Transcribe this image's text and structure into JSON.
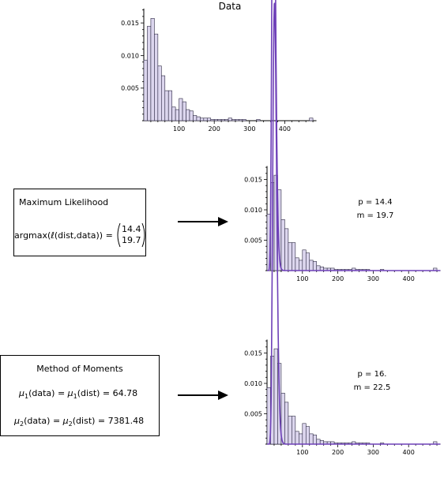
{
  "title": "Data",
  "colors": {
    "bar_fill": "#dcd6ee",
    "bar_stroke": "#2a2640",
    "curve": "#6e40b8",
    "axis": "#000000"
  },
  "chart_data": [
    {
      "type": "bar",
      "title": "Data",
      "bin_width": 10,
      "x_start": 0,
      "values": [
        0.0093,
        0.0145,
        0.0157,
        0.0133,
        0.0084,
        0.0069,
        0.0046,
        0.0046,
        0.0021,
        0.0017,
        0.0034,
        0.0029,
        0.0017,
        0.0015,
        0.0008,
        0.0006,
        0.0004,
        0.0004,
        0.0004,
        0.0002,
        0.0002,
        0.0002,
        0.0002,
        0.0002,
        0.0004,
        0.0002,
        0.0002,
        0.0002,
        0.0002,
        0.0,
        0.0,
        0.0,
        0.0002,
        0.0,
        0.0,
        0.0,
        0.0,
        0.0,
        0.0,
        0.0,
        0.0,
        0.0,
        0.0,
        0.0,
        0.0,
        0.0,
        0.0,
        0.0004
      ],
      "xlim": [
        0,
        490
      ],
      "ylim": [
        0,
        0.0172
      ],
      "xticks": [
        100,
        200,
        300,
        400
      ],
      "yticks": [
        0.005,
        0.01,
        0.015
      ],
      "ytick_labels": [
        "0.005",
        "0.010",
        "0.015"
      ]
    },
    {
      "type": "bar",
      "title": "",
      "bin_width": 10,
      "x_start": 0,
      "values": [
        0.0093,
        0.0145,
        0.0157,
        0.0133,
        0.0084,
        0.0069,
        0.0046,
        0.0046,
        0.0021,
        0.0017,
        0.0034,
        0.0029,
        0.0017,
        0.0015,
        0.0008,
        0.0006,
        0.0004,
        0.0004,
        0.0004,
        0.0002,
        0.0002,
        0.0002,
        0.0002,
        0.0002,
        0.0004,
        0.0002,
        0.0002,
        0.0002,
        0.0002,
        0.0,
        0.0,
        0.0,
        0.0002,
        0.0,
        0.0,
        0.0,
        0.0,
        0.0,
        0.0,
        0.0,
        0.0,
        0.0,
        0.0,
        0.0,
        0.0,
        0.0,
        0.0,
        0.0004
      ],
      "xlim": [
        0,
        490
      ],
      "ylim": [
        0,
        0.0172
      ],
      "xticks": [
        100,
        200,
        300,
        400
      ],
      "yticks": [
        0.005,
        0.01,
        0.015
      ],
      "ytick_labels": [
        "0.005",
        "0.010",
        "0.015"
      ],
      "curve": {
        "p": 14.4,
        "m": 19.7
      }
    },
    {
      "type": "bar",
      "title": "",
      "bin_width": 10,
      "x_start": 0,
      "values": [
        0.0093,
        0.0145,
        0.0157,
        0.0133,
        0.0084,
        0.0069,
        0.0046,
        0.0046,
        0.0021,
        0.0017,
        0.0034,
        0.0029,
        0.0017,
        0.0015,
        0.0008,
        0.0006,
        0.0004,
        0.0004,
        0.0004,
        0.0002,
        0.0002,
        0.0002,
        0.0002,
        0.0002,
        0.0004,
        0.0002,
        0.0002,
        0.0002,
        0.0002,
        0.0,
        0.0,
        0.0,
        0.0002,
        0.0,
        0.0,
        0.0,
        0.0,
        0.0,
        0.0,
        0.0,
        0.0,
        0.0,
        0.0,
        0.0,
        0.0,
        0.0,
        0.0,
        0.0004
      ],
      "xlim": [
        0,
        490
      ],
      "ylim": [
        0,
        0.0172
      ],
      "xticks": [
        100,
        200,
        300,
        400
      ],
      "yticks": [
        0.005,
        0.01,
        0.015
      ],
      "ytick_labels": [
        "0.005",
        "0.010",
        "0.015"
      ],
      "curve": {
        "p": 16,
        "m": 22.5
      }
    }
  ],
  "ml": {
    "heading": "Maximum Likelihood",
    "formula_left": "argmax(",
    "formula_ell": "ℓ",
    "formula_right": "(dist,data)) =",
    "vec_top": "14.4",
    "vec_bottom": "19.7",
    "p_text": "p = 14.4",
    "m_text": "m = 19.7"
  },
  "mom": {
    "heading": "Method of Moments",
    "mu": "μ",
    "sub1": "1",
    "sub2": "2",
    "data_arg": "(data) =",
    "dist_arg1": "(dist) = 64.78",
    "dist_arg2": "(dist) = 7381.48",
    "p_text": "p = 16.",
    "m_text": "m = 22.5"
  }
}
